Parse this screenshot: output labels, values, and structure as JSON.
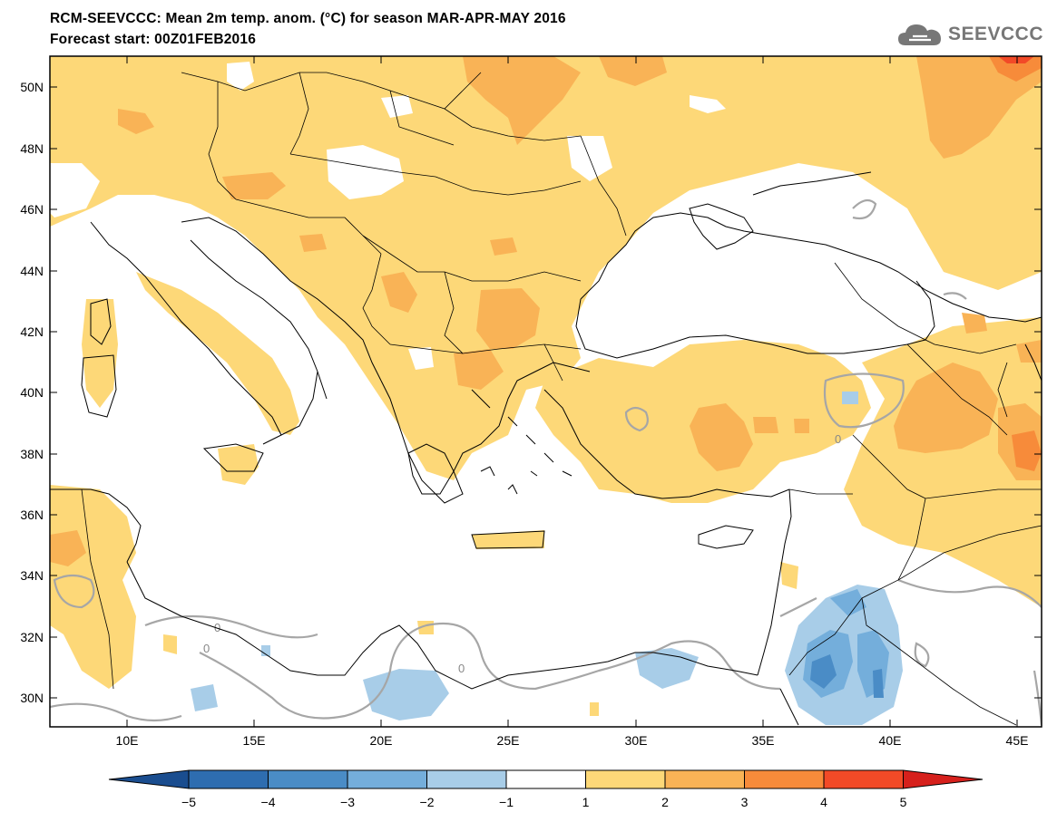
{
  "title_line1": "RCM-SEEVCCC: Mean 2m temp. anom. (°C) for season MAR-APR-MAY 2016",
  "title_line2": "Forecast start: 00Z01FEB2016",
  "logo_text": "SEEVCCC",
  "lon_ticks": [
    "10E",
    "15E",
    "20E",
    "25E",
    "30E",
    "35E",
    "40E",
    "45E"
  ],
  "lat_ticks": [
    "50N",
    "48N",
    "46N",
    "44N",
    "42N",
    "40N",
    "38N",
    "36N",
    "34N",
    "32N",
    "30N"
  ],
  "colorbar": {
    "labels": [
      "−5",
      "−4",
      "−3",
      "−2",
      "−1",
      "1",
      "2",
      "3",
      "4",
      "5"
    ],
    "colors": [
      "#1a4d8f",
      "#2e6db0",
      "#4a8cc6",
      "#74aedb",
      "#a8cde8",
      "#ffffff",
      "#fdd878",
      "#f9b356",
      "#f78b3a",
      "#f24a27",
      "#d6201c"
    ]
  },
  "contour_labels": [
    "0",
    "0",
    "0",
    "0"
  ]
}
